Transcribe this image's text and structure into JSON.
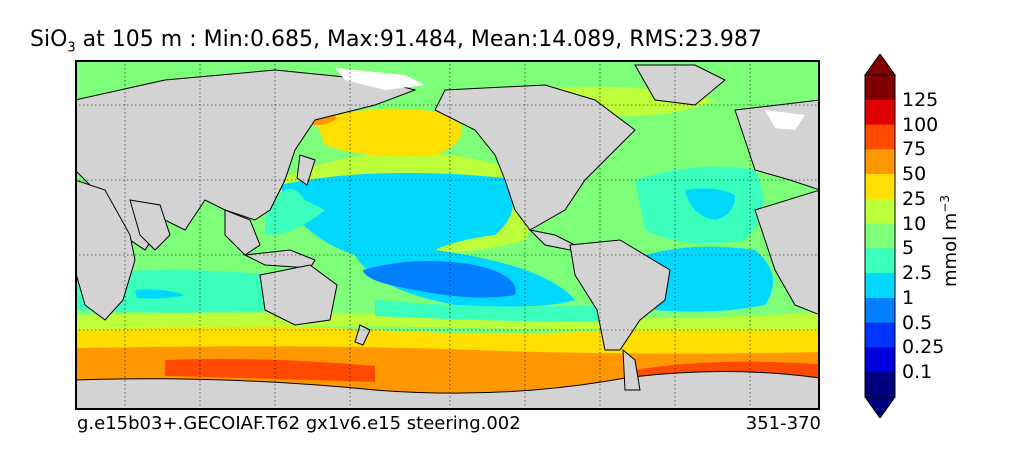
{
  "title": {
    "species": "SiO",
    "species_subscript": "3",
    "stats": " at 105 m : Min:0.685, Max:91.484, Mean:14.089, RMS:23.987"
  },
  "footer": {
    "run_name": "g.e15b03+.GECOIAF.T62 gx1v6.e15 steering.002",
    "period": "351-370"
  },
  "colorbar": {
    "units_base": "mmol m",
    "units_exponent": "−3",
    "labels": [
      "125",
      "100",
      "75",
      "50",
      "25",
      "10",
      "5",
      "2.5",
      "1",
      "0.5",
      "0.25",
      "0.1"
    ],
    "colors": [
      "#7f0000",
      "#df0000",
      "#ff4a00",
      "#ff9800",
      "#ffdf00",
      "#bdff3a",
      "#7dff7a",
      "#3affbd",
      "#00d8ff",
      "#0080ff",
      "#0034ff",
      "#0000df"
    ],
    "under_color": "#00007f",
    "over_color": "#7f0000"
  },
  "map": {
    "land_color": "#d3d3d3",
    "gridlines": "dotted"
  }
}
